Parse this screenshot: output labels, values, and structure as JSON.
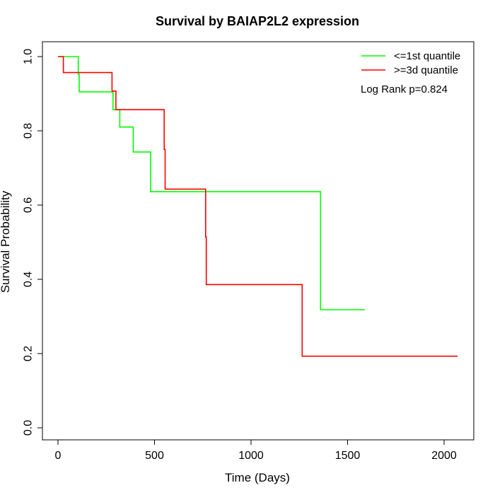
{
  "chart_data": {
    "type": "line",
    "step": true,
    "title": "Survival by BAIAP2L2 expression",
    "xlabel": "Time (Days)",
    "ylabel": "Survival Probability",
    "xlim": [
      0,
      2070
    ],
    "ylim": [
      0,
      1.0
    ],
    "x_ticks": [
      0,
      500,
      1000,
      1500,
      2000
    ],
    "x_tick_labels": [
      "0",
      "500",
      "1000",
      "1500",
      "2000"
    ],
    "y_ticks": [
      0.0,
      0.2,
      0.4,
      0.6,
      0.8,
      1.0
    ],
    "y_tick_labels": [
      "0.0",
      "0.2",
      "0.4",
      "0.6",
      "0.8",
      "1.0"
    ],
    "grid": false,
    "legend_position": "top-right",
    "annotation": "Log Rank p=0.824",
    "series": [
      {
        "name": "<=1st quantile",
        "color": "#00ff00",
        "x": [
          0,
          105,
          110,
          285,
          320,
          390,
          480,
          1360,
          1590
        ],
        "y": [
          1.0,
          0.952,
          0.905,
          0.857,
          0.81,
          0.743,
          0.636,
          0.318,
          0.318
        ]
      },
      {
        "name": ">=3d quantile",
        "color": "#ff0000",
        "x": [
          0,
          28,
          280,
          300,
          550,
          555,
          765,
          768,
          1265,
          2070
        ],
        "y": [
          1.0,
          0.957,
          0.907,
          0.857,
          0.75,
          0.643,
          0.514,
          0.386,
          0.193,
          0.193
        ]
      }
    ]
  }
}
